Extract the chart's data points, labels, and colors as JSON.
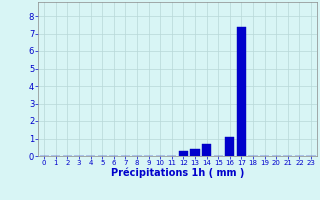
{
  "hours": [
    0,
    1,
    2,
    3,
    4,
    5,
    6,
    7,
    8,
    9,
    10,
    11,
    12,
    13,
    14,
    15,
    16,
    17,
    18,
    19,
    20,
    21,
    22,
    23
  ],
  "values": [
    0,
    0,
    0,
    0,
    0,
    0,
    0,
    0,
    0,
    0,
    0,
    0,
    0.3,
    0.4,
    0.7,
    0,
    1.1,
    7.4,
    0,
    0,
    0,
    0,
    0,
    0
  ],
  "bar_color": "#0000cc",
  "bar_edge_color": "#0000bb",
  "background_color": "#d8f5f5",
  "grid_color": "#b8d8d8",
  "xlabel": "Précipitations 1h ( mm )",
  "xlabel_color": "#0000cc",
  "tick_color": "#0000cc",
  "spine_color": "#888888",
  "ylim": [
    0,
    8.8
  ],
  "yticks": [
    0,
    1,
    2,
    3,
    4,
    5,
    6,
    7,
    8
  ],
  "xlim": [
    -0.5,
    23.5
  ],
  "label_fontsize": 7,
  "tick_fontsize_x": 5,
  "tick_fontsize_y": 6
}
